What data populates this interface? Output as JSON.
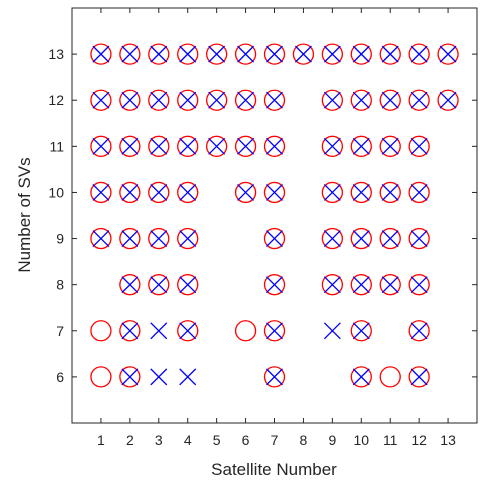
{
  "chart_data": {
    "type": "scatter",
    "title": "",
    "xlabel": "Satellite Number",
    "ylabel": "Number of SVs",
    "xlim": [
      0,
      14
    ],
    "ylim": [
      5,
      14
    ],
    "xticks": [
      1,
      2,
      3,
      4,
      5,
      6,
      7,
      8,
      9,
      10,
      11,
      12,
      13
    ],
    "yticks": [
      6,
      7,
      8,
      9,
      10,
      11,
      12,
      13
    ],
    "grid": false,
    "series": [
      {
        "marker": "circle",
        "color": "#ff0000",
        "points": [
          [
            1,
            13
          ],
          [
            2,
            13
          ],
          [
            3,
            13
          ],
          [
            4,
            13
          ],
          [
            5,
            13
          ],
          [
            6,
            13
          ],
          [
            7,
            13
          ],
          [
            8,
            13
          ],
          [
            9,
            13
          ],
          [
            10,
            13
          ],
          [
            11,
            13
          ],
          [
            12,
            13
          ],
          [
            13,
            13
          ],
          [
            1,
            12
          ],
          [
            2,
            12
          ],
          [
            3,
            12
          ],
          [
            4,
            12
          ],
          [
            5,
            12
          ],
          [
            6,
            12
          ],
          [
            7,
            12
          ],
          [
            9,
            12
          ],
          [
            10,
            12
          ],
          [
            11,
            12
          ],
          [
            12,
            12
          ],
          [
            13,
            12
          ],
          [
            1,
            11
          ],
          [
            2,
            11
          ],
          [
            3,
            11
          ],
          [
            4,
            11
          ],
          [
            5,
            11
          ],
          [
            6,
            11
          ],
          [
            7,
            11
          ],
          [
            9,
            11
          ],
          [
            10,
            11
          ],
          [
            11,
            11
          ],
          [
            12,
            11
          ],
          [
            1,
            10
          ],
          [
            2,
            10
          ],
          [
            3,
            10
          ],
          [
            4,
            10
          ],
          [
            6,
            10
          ],
          [
            7,
            10
          ],
          [
            9,
            10
          ],
          [
            10,
            10
          ],
          [
            11,
            10
          ],
          [
            12,
            10
          ],
          [
            1,
            9
          ],
          [
            2,
            9
          ],
          [
            3,
            9
          ],
          [
            4,
            9
          ],
          [
            7,
            9
          ],
          [
            9,
            9
          ],
          [
            10,
            9
          ],
          [
            11,
            9
          ],
          [
            12,
            9
          ],
          [
            2,
            8
          ],
          [
            3,
            8
          ],
          [
            4,
            8
          ],
          [
            7,
            8
          ],
          [
            9,
            8
          ],
          [
            10,
            8
          ],
          [
            11,
            8
          ],
          [
            12,
            8
          ],
          [
            1,
            7
          ],
          [
            2,
            7
          ],
          [
            4,
            7
          ],
          [
            6,
            7
          ],
          [
            7,
            7
          ],
          [
            10,
            7
          ],
          [
            12,
            7
          ],
          [
            1,
            6
          ],
          [
            2,
            6
          ],
          [
            7,
            6
          ],
          [
            10,
            6
          ],
          [
            11,
            6
          ],
          [
            12,
            6
          ]
        ]
      },
      {
        "marker": "x",
        "color": "#0000ff",
        "points": [
          [
            1,
            13
          ],
          [
            2,
            13
          ],
          [
            3,
            13
          ],
          [
            4,
            13
          ],
          [
            5,
            13
          ],
          [
            6,
            13
          ],
          [
            7,
            13
          ],
          [
            8,
            13
          ],
          [
            9,
            13
          ],
          [
            10,
            13
          ],
          [
            11,
            13
          ],
          [
            12,
            13
          ],
          [
            13,
            13
          ],
          [
            1,
            12
          ],
          [
            2,
            12
          ],
          [
            3,
            12
          ],
          [
            4,
            12
          ],
          [
            5,
            12
          ],
          [
            6,
            12
          ],
          [
            7,
            12
          ],
          [
            9,
            12
          ],
          [
            10,
            12
          ],
          [
            11,
            12
          ],
          [
            12,
            12
          ],
          [
            13,
            12
          ],
          [
            1,
            11
          ],
          [
            2,
            11
          ],
          [
            3,
            11
          ],
          [
            4,
            11
          ],
          [
            5,
            11
          ],
          [
            6,
            11
          ],
          [
            7,
            11
          ],
          [
            9,
            11
          ],
          [
            10,
            11
          ],
          [
            11,
            11
          ],
          [
            12,
            11
          ],
          [
            1,
            10
          ],
          [
            2,
            10
          ],
          [
            3,
            10
          ],
          [
            4,
            10
          ],
          [
            6,
            10
          ],
          [
            7,
            10
          ],
          [
            9,
            10
          ],
          [
            10,
            10
          ],
          [
            11,
            10
          ],
          [
            12,
            10
          ],
          [
            1,
            9
          ],
          [
            2,
            9
          ],
          [
            3,
            9
          ],
          [
            4,
            9
          ],
          [
            7,
            9
          ],
          [
            9,
            9
          ],
          [
            10,
            9
          ],
          [
            11,
            9
          ],
          [
            12,
            9
          ],
          [
            2,
            8
          ],
          [
            3,
            8
          ],
          [
            4,
            8
          ],
          [
            7,
            8
          ],
          [
            9,
            8
          ],
          [
            10,
            8
          ],
          [
            11,
            8
          ],
          [
            12,
            8
          ],
          [
            2,
            7
          ],
          [
            3,
            7
          ],
          [
            4,
            7
          ],
          [
            7,
            7
          ],
          [
            9,
            7
          ],
          [
            10,
            7
          ],
          [
            12,
            7
          ],
          [
            2,
            6
          ],
          [
            3,
            6
          ],
          [
            4,
            6
          ],
          [
            7,
            6
          ],
          [
            10,
            6
          ],
          [
            12,
            6
          ]
        ]
      }
    ]
  }
}
